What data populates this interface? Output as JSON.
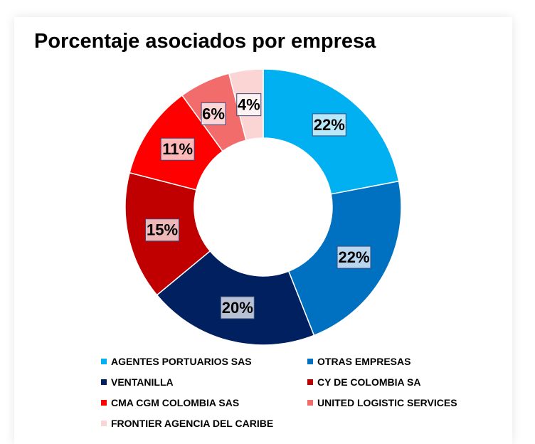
{
  "chart_data": {
    "type": "pie",
    "title": "Porcentaje asociados por empresa",
    "donut": true,
    "categories": [
      "AGENTES PORTUARIOS SAS",
      "OTRAS EMPRESAS",
      "VENTANILLA",
      "CY DE COLOMBIA SA",
      "CMA CGM COLOMBIA SAS",
      "UNITED LOGISTIC SERVICES",
      "FRONTIER AGENCIA DEL CARIBE"
    ],
    "values": [
      22,
      22,
      20,
      15,
      11,
      6,
      4
    ],
    "value_labels": [
      "22%",
      "22%",
      "20%",
      "15%",
      "11%",
      "6%",
      "4%"
    ],
    "colors": [
      "#00b0f0",
      "#0070c0",
      "#002060",
      "#c00000",
      "#ff0000",
      "#f26c6c",
      "#fbd4d4"
    ],
    "legend_position": "bottom"
  }
}
